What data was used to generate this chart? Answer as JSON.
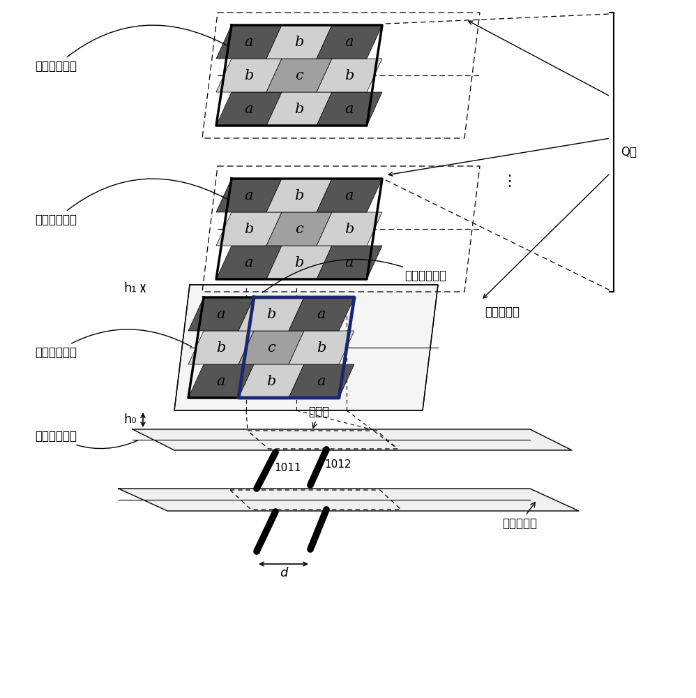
{
  "bg_color": "#ffffff",
  "dark_gray": "#555555",
  "light_gray": "#d0d0d0",
  "mid_gray": "#a0a0a0",
  "very_light": "#e8e8e8",
  "dark_blue": "#1a2870",
  "black": "#000000",
  "grid_labels": [
    "a",
    "b",
    "a",
    "b",
    "c",
    "b",
    "a",
    "b",
    "a"
  ],
  "label_q": "Q层",
  "label_sym1": "第一对称轴",
  "label_sym2": "第二对称轴",
  "label_target1": "第一目标区域",
  "label_target2": "第二目标区域",
  "label_overlap": "重合区",
  "label_h0": "h₀",
  "label_h1": "h₁",
  "label_d": "d",
  "label_1011": "1011",
  "label_1012": "1012",
  "dots": "..."
}
